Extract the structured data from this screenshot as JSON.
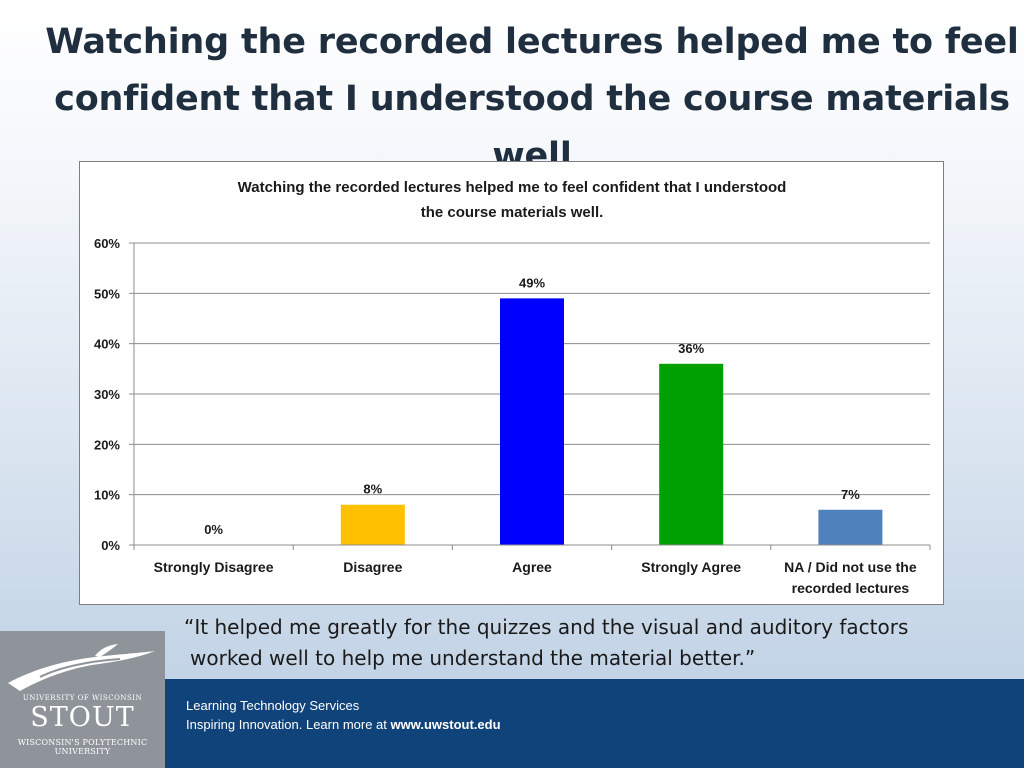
{
  "slide": {
    "title_line1": "Watching the recorded lectures helped me to feel",
    "title_line2": "confident that I understood the course materials well"
  },
  "quote": {
    "line1": "“It helped me greatly for the quizzes and the visual and auditory factors",
    "line2": "worked well to help me understand the material better.”"
  },
  "footer": {
    "line1": "Learning Technology Services",
    "line2_prefix": "Inspiring Innovation.  Learn more at ",
    "line2_link": "www.uwstout.edu"
  },
  "logo": {
    "line1": "UNIVERSITY OF WISCONSIN",
    "line2": "STOUT",
    "line3": "WISCONSIN'S POLYTECHNIC UNIVERSITY"
  },
  "colors": {
    "strongly_disagree": "#4472c4",
    "disagree": "#ffc000",
    "agree": "#0000ff",
    "strongly_agree": "#00a000",
    "na": "#4f81bd",
    "footer_band": "#10437a"
  },
  "chart_data": {
    "type": "bar",
    "title_line1": "Watching the recorded lectures helped me to feel confident that I understood",
    "title_line2": "the course materials well.",
    "categories": [
      [
        "Strongly Disagree"
      ],
      [
        "Disagree"
      ],
      [
        "Agree"
      ],
      [
        "Strongly Agree"
      ],
      [
        "NA / Did not use the",
        "recorded lectures"
      ]
    ],
    "values": [
      0,
      8,
      49,
      36,
      7
    ],
    "value_labels": [
      "0%",
      "8%",
      "49%",
      "36%",
      "7%"
    ],
    "bar_colors": [
      "#4472c4",
      "#ffc000",
      "#0000ff",
      "#00a000",
      "#4f81bd"
    ],
    "ylim": [
      0,
      60
    ],
    "yticks": [
      0,
      10,
      20,
      30,
      40,
      50,
      60
    ],
    "ytick_labels": [
      "0%",
      "10%",
      "20%",
      "30%",
      "40%",
      "50%",
      "60%"
    ],
    "grid": true,
    "legend": false
  }
}
